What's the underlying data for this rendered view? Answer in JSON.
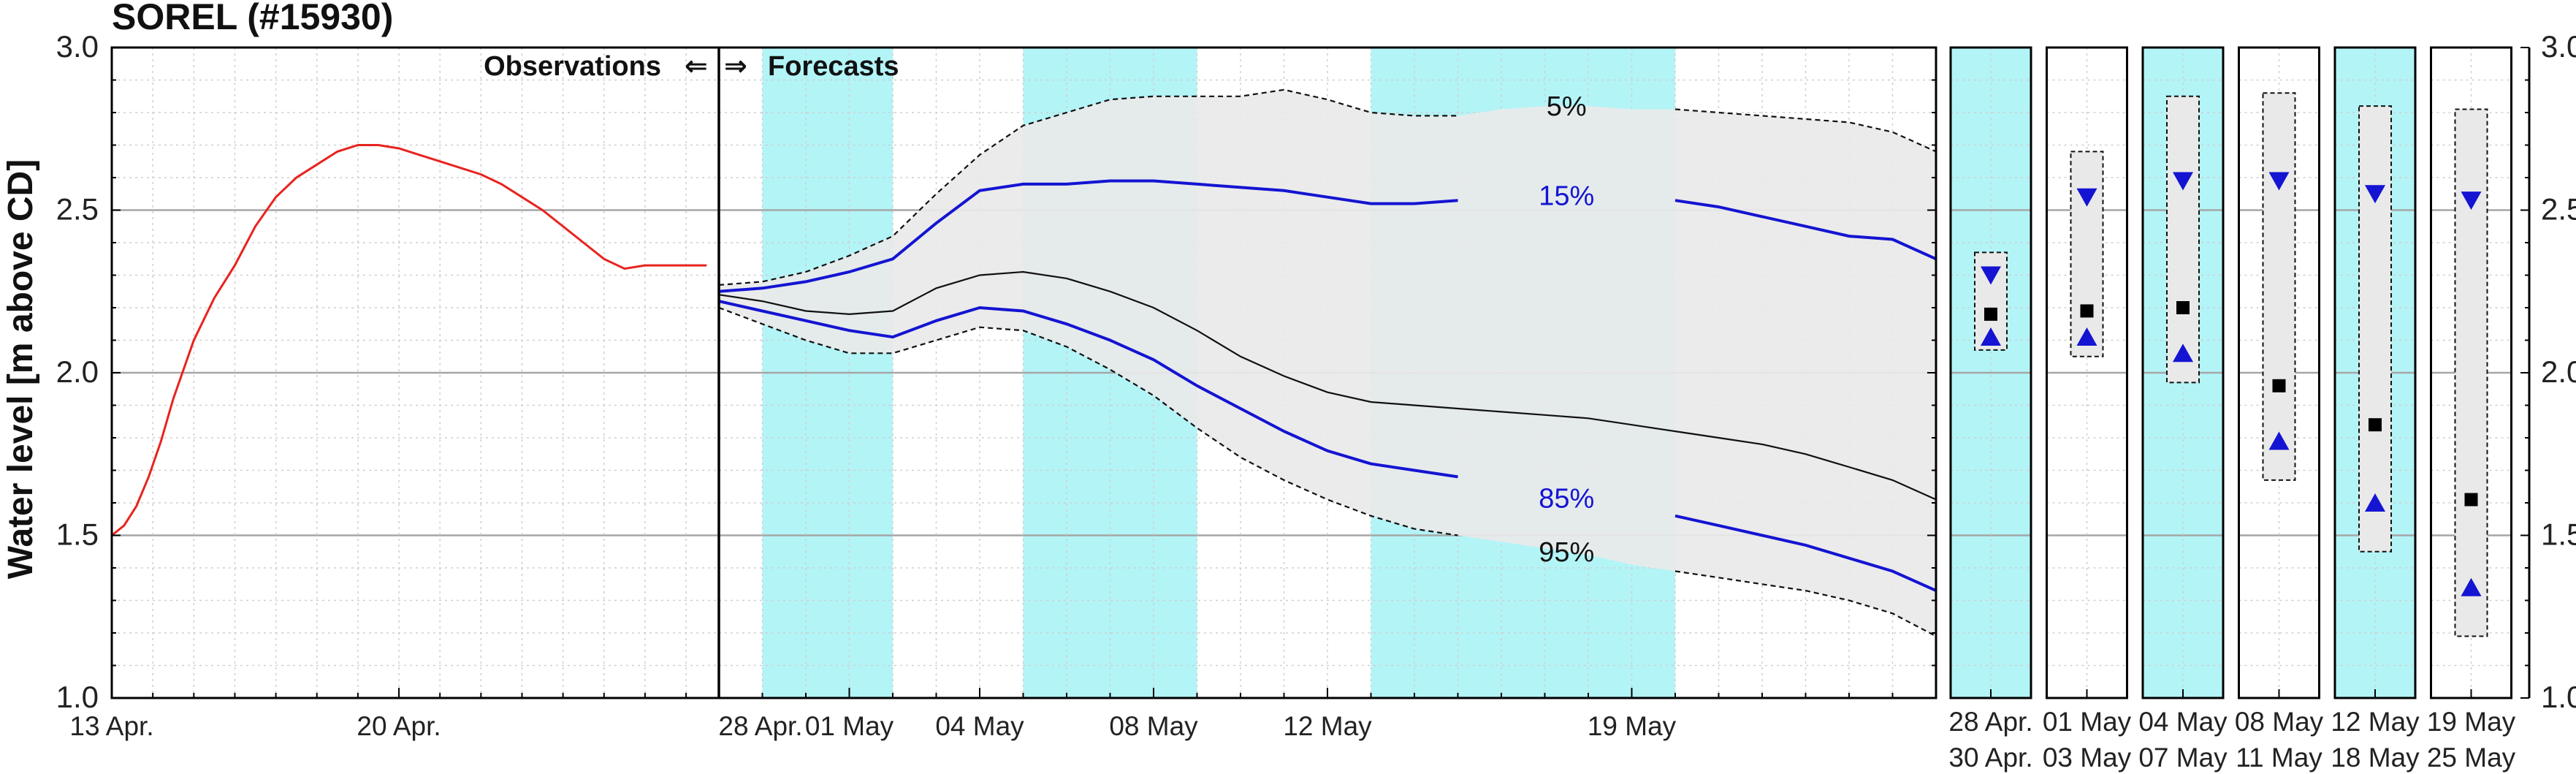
{
  "chart_data": {
    "type": "line",
    "title": "SOREL (#15930)",
    "ylabel": "Water level [m above CD]",
    "xlabel": "",
    "ylim": [
      1.0,
      3.0
    ],
    "yticks": [
      "1.0",
      "1.5",
      "2.0",
      "2.5",
      "3.0"
    ],
    "grid": true,
    "header_observations": "Observations",
    "header_forecasts": "Forecasts",
    "arrow_left": "⇐",
    "arrow_right": "⇒",
    "colors": {
      "observed": "#e8231f",
      "percentile_blue": "#1414d2",
      "median": "#111111",
      "band": "#e9e9e9",
      "weekend_shade": "#b3f4f7"
    },
    "observations": {
      "xticks": [
        {
          "day": 0,
          "label": "13 Apr."
        },
        {
          "day": 7,
          "label": "20 Apr."
        }
      ],
      "x": [
        0,
        0.3,
        0.6,
        0.9,
        1.2,
        1.5,
        2,
        2.5,
        3,
        3.5,
        4,
        4.5,
        5,
        5.5,
        6,
        6.5,
        7,
        7.5,
        8,
        8.5,
        9,
        9.5,
        10,
        10.5,
        11,
        11.5,
        12,
        12.5,
        13,
        13.5,
        14,
        14.5
      ],
      "y": [
        1.5,
        1.53,
        1.59,
        1.68,
        1.79,
        1.92,
        2.1,
        2.23,
        2.33,
        2.45,
        2.54,
        2.6,
        2.64,
        2.68,
        2.7,
        2.7,
        2.69,
        2.67,
        2.65,
        2.63,
        2.61,
        2.58,
        2.54,
        2.5,
        2.45,
        2.4,
        2.35,
        2.32,
        2.33,
        2.33,
        2.33,
        2.33
      ]
    },
    "forecast": {
      "xticks": [
        {
          "day": 0,
          "label": "28 Apr."
        },
        {
          "day": 3,
          "label": "01 May"
        },
        {
          "day": 6,
          "label": "04 May"
        },
        {
          "day": 10,
          "label": "08 May"
        },
        {
          "day": 14,
          "label": "12 May"
        },
        {
          "day": 21,
          "label": "19 May"
        }
      ],
      "shaded_days": [
        [
          1,
          4
        ],
        [
          7,
          11
        ],
        [
          15,
          22
        ]
      ],
      "x": [
        0,
        1,
        2,
        3,
        4,
        5,
        6,
        7,
        8,
        9,
        10,
        11,
        12,
        13,
        14,
        15,
        16,
        17,
        18,
        19,
        20,
        21,
        22,
        23,
        24,
        25,
        26,
        27,
        28
      ],
      "series": [
        {
          "name": "5%",
          "style": "dashed",
          "color": "#111111",
          "label_day": 19.5,
          "label_color": "#111111",
          "values": [
            2.27,
            2.28,
            2.31,
            2.36,
            2.42,
            2.55,
            2.67,
            2.76,
            2.8,
            2.84,
            2.85,
            2.85,
            2.85,
            2.87,
            2.84,
            2.8,
            2.79,
            2.79,
            2.81,
            2.82,
            2.82,
            2.81,
            2.81,
            2.8,
            2.79,
            2.78,
            2.77,
            2.74,
            2.68
          ]
        },
        {
          "name": "15%",
          "style": "solid",
          "color": "#1414d2",
          "label_day": 19.5,
          "label_color": "#1414d2",
          "values": [
            2.25,
            2.26,
            2.28,
            2.31,
            2.35,
            2.46,
            2.56,
            2.58,
            2.58,
            2.59,
            2.59,
            2.58,
            2.57,
            2.56,
            2.54,
            2.52,
            2.52,
            2.53,
            2.53,
            2.54,
            2.55,
            2.54,
            2.53,
            2.51,
            2.48,
            2.45,
            2.42,
            2.41,
            2.35
          ]
        },
        {
          "name": "median",
          "style": "solid",
          "color": "#111111",
          "label_day": null,
          "values": [
            2.24,
            2.22,
            2.19,
            2.18,
            2.19,
            2.26,
            2.3,
            2.31,
            2.29,
            2.25,
            2.2,
            2.13,
            2.05,
            1.99,
            1.94,
            1.91,
            1.9,
            1.89,
            1.88,
            1.87,
            1.86,
            1.84,
            1.82,
            1.8,
            1.78,
            1.75,
            1.71,
            1.67,
            1.61
          ]
        },
        {
          "name": "85%",
          "style": "solid",
          "color": "#1414d2",
          "label_day": 19.5,
          "label_color": "#1414d2",
          "values": [
            2.22,
            2.19,
            2.16,
            2.13,
            2.11,
            2.16,
            2.2,
            2.19,
            2.15,
            2.1,
            2.04,
            1.96,
            1.89,
            1.82,
            1.76,
            1.72,
            1.7,
            1.68,
            1.66,
            1.63,
            1.6,
            1.58,
            1.56,
            1.53,
            1.5,
            1.47,
            1.43,
            1.39,
            1.33
          ]
        },
        {
          "name": "95%",
          "style": "dashed",
          "color": "#111111",
          "label_day": 19.5,
          "label_color": "#111111",
          "values": [
            2.2,
            2.15,
            2.1,
            2.06,
            2.06,
            2.1,
            2.14,
            2.13,
            2.08,
            2.01,
            1.93,
            1.83,
            1.74,
            1.67,
            1.61,
            1.56,
            1.52,
            1.5,
            1.48,
            1.46,
            1.44,
            1.41,
            1.39,
            1.37,
            1.35,
            1.33,
            1.3,
            1.26,
            1.19
          ]
        }
      ]
    },
    "weekly_panels": [
      {
        "date1": "28  Apr.",
        "date2": "30  Apr.",
        "shaded": true,
        "box": [
          2.07,
          2.37
        ],
        "median": 2.18,
        "tri_down": 2.3,
        "tri_up": 2.11
      },
      {
        "date1": "01  May",
        "date2": "03  May",
        "shaded": false,
        "box": [
          2.05,
          2.68
        ],
        "median": 2.19,
        "tri_down": 2.54,
        "tri_up": 2.11
      },
      {
        "date1": "04  May",
        "date2": "07  May",
        "shaded": true,
        "box": [
          1.97,
          2.85
        ],
        "median": 2.2,
        "tri_down": 2.59,
        "tri_up": 2.06
      },
      {
        "date1": "08  May",
        "date2": "11  May",
        "shaded": false,
        "box": [
          1.67,
          2.86
        ],
        "median": 1.96,
        "tri_down": 2.59,
        "tri_up": 1.79
      },
      {
        "date1": "12  May",
        "date2": "18  May",
        "shaded": true,
        "box": [
          1.45,
          2.82
        ],
        "median": 1.84,
        "tri_down": 2.55,
        "tri_up": 1.6
      },
      {
        "date1": "19  May",
        "date2": "25  May",
        "shaded": false,
        "box": [
          1.19,
          2.81
        ],
        "median": 1.61,
        "tri_down": 2.53,
        "tri_up": 1.34
      }
    ]
  }
}
